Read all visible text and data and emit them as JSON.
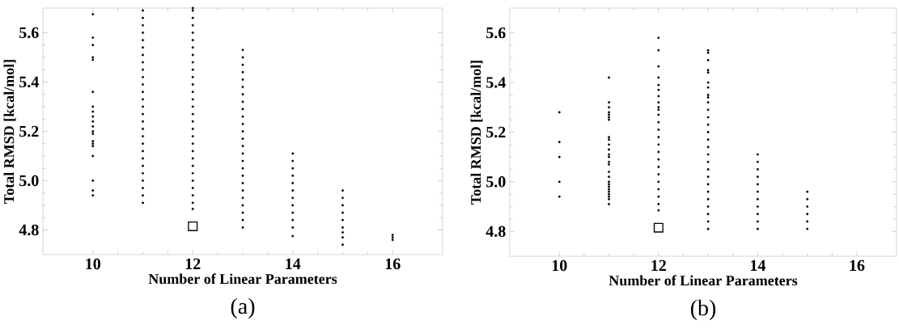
{
  "chart_data": [
    {
      "type": "scatter",
      "title": "(a)",
      "xlabel": "Number of Linear Parameters",
      "ylabel": "Total RMSD [kcal/mol]",
      "xlim": [
        9,
        17
      ],
      "ylim": [
        4.7,
        5.7
      ],
      "xticks": [
        10,
        12,
        14,
        16
      ],
      "yticks": [
        4.8,
        {
          "value": 5,
          "label": "5.0"
        },
        5.2,
        5.4,
        5.6
      ],
      "marker": "circle",
      "series": [
        {
          "color": "#000000",
          "x": [
            10,
            10,
            10,
            10,
            10,
            10,
            10,
            10,
            10,
            10,
            10,
            10,
            10,
            10,
            10,
            10,
            10,
            10,
            10,
            10
          ],
          "values": [
            5.675,
            5.58,
            5.55,
            5.5,
            5.49,
            5.36,
            5.3,
            5.28,
            5.26,
            5.24,
            5.22,
            5.2,
            5.19,
            5.16,
            5.15,
            5.14,
            5.1,
            5.0,
            4.96,
            4.94
          ]
        },
        {
          "color": "#000000",
          "x": [
            11,
            11,
            11,
            11,
            11,
            11,
            11,
            11,
            11,
            11,
            11,
            11,
            11,
            11,
            11,
            11,
            11,
            11,
            11,
            11,
            11,
            11,
            11,
            11,
            11,
            11,
            11
          ],
          "values": [
            4.91,
            4.94,
            4.97,
            5.0,
            5.03,
            5.06,
            5.09,
            5.12,
            5.15,
            5.18,
            5.21,
            5.24,
            5.27,
            5.3,
            5.33,
            5.36,
            5.39,
            5.42,
            5.45,
            5.48,
            5.51,
            5.54,
            5.57,
            5.6,
            5.63,
            5.66,
            5.69
          ]
        },
        {
          "color": "#000000",
          "x": [
            12,
            12,
            12,
            12,
            12,
            12,
            12,
            12,
            12,
            12,
            12,
            12,
            12,
            12,
            12,
            12,
            12,
            12,
            12,
            12,
            12,
            12,
            12,
            12,
            12,
            12,
            12,
            12,
            12
          ],
          "values": [
            4.885,
            4.91,
            4.94,
            4.97,
            5.0,
            5.03,
            5.06,
            5.09,
            5.12,
            5.15,
            5.18,
            5.21,
            5.24,
            5.27,
            5.3,
            5.33,
            5.36,
            5.39,
            5.42,
            5.45,
            5.48,
            5.51,
            5.54,
            5.57,
            5.6,
            5.63,
            5.66,
            5.69,
            5.7
          ]
        },
        {
          "color": "#000000",
          "x": [
            13,
            13,
            13,
            13,
            13,
            13,
            13,
            13,
            13,
            13,
            13,
            13,
            13,
            13,
            13,
            13,
            13,
            13,
            13,
            13,
            13,
            13,
            13,
            13,
            13
          ],
          "values": [
            4.81,
            4.84,
            4.87,
            4.9,
            4.93,
            4.96,
            4.99,
            5.02,
            5.05,
            5.08,
            5.11,
            5.14,
            5.17,
            5.2,
            5.23,
            5.26,
            5.29,
            5.32,
            5.35,
            5.38,
            5.41,
            5.44,
            5.47,
            5.5,
            5.53
          ]
        },
        {
          "color": "#000000",
          "x": [
            14,
            14,
            14,
            14,
            14,
            14,
            14,
            14,
            14,
            14,
            14,
            14
          ],
          "values": [
            4.775,
            4.81,
            4.84,
            4.87,
            4.9,
            4.93,
            4.96,
            4.99,
            5.02,
            5.05,
            5.08,
            5.11
          ]
        },
        {
          "color": "#000000",
          "x": [
            15,
            15,
            15,
            15,
            15,
            15,
            15,
            15,
            15
          ],
          "values": [
            4.74,
            4.77,
            4.79,
            4.81,
            4.84,
            4.87,
            4.9,
            4.93,
            4.96
          ]
        },
        {
          "color": "#000000",
          "x": [
            16,
            16,
            16
          ],
          "values": [
            4.76,
            4.77,
            4.78
          ]
        },
        {
          "color": "#000000",
          "marker": "square",
          "x": [
            12
          ],
          "values": [
            4.815
          ]
        }
      ]
    },
    {
      "type": "scatter",
      "title": "(b)",
      "xlabel": "Number of Linear Parameters",
      "ylabel": "Total RMSD [kcal/mol]",
      "xlim": [
        9,
        16.8
      ],
      "ylim": [
        4.7,
        5.7
      ],
      "xticks": [
        10,
        12,
        14,
        16
      ],
      "yticks": [
        4.8,
        {
          "value": 5,
          "label": "5.0"
        },
        5.2,
        5.4,
        5.6
      ],
      "marker": "circle",
      "series": [
        {
          "color": "#000000",
          "x": [
            10,
            10,
            10,
            10,
            10
          ],
          "values": [
            5.28,
            5.16,
            5.1,
            5.0,
            4.94
          ]
        },
        {
          "color": "#000000",
          "x": [
            11,
            11,
            11,
            11,
            11,
            11,
            11,
            11,
            11,
            11,
            11,
            11,
            11,
            11,
            11,
            11,
            11,
            11,
            11,
            11,
            11,
            11,
            11,
            11,
            11,
            11
          ],
          "values": [
            5.42,
            5.32,
            5.3,
            5.28,
            5.27,
            5.26,
            5.25,
            5.18,
            5.17,
            5.15,
            5.13,
            5.11,
            5.1,
            5.08,
            5.07,
            5.04,
            5.02,
            5.0,
            4.99,
            4.98,
            4.97,
            4.96,
            4.95,
            4.94,
            4.93,
            4.91
          ]
        },
        {
          "color": "#000000",
          "x": [
            12,
            12,
            12,
            12,
            12,
            12,
            12,
            12,
            12,
            12,
            12,
            12,
            12,
            12,
            12,
            12,
            12,
            12,
            12,
            12,
            12,
            12,
            12,
            12
          ],
          "values": [
            5.58,
            5.53,
            5.465,
            5.42,
            5.39,
            5.37,
            5.345,
            5.32,
            5.3,
            4.885,
            4.91,
            4.94,
            4.97,
            5.0,
            5.03,
            5.06,
            5.09,
            5.12,
            5.15,
            5.18,
            5.21,
            5.24,
            5.27,
            5.29
          ]
        },
        {
          "color": "#000000",
          "x": [
            13,
            13,
            13,
            13,
            13,
            13,
            13,
            13,
            13,
            13,
            13,
            13,
            13,
            13,
            13,
            13,
            13,
            13,
            13,
            13,
            13,
            13,
            13,
            13,
            13,
            13,
            13
          ],
          "values": [
            5.53,
            5.52,
            5.49,
            5.45,
            5.44,
            5.4,
            5.38,
            5.35,
            4.81,
            4.84,
            4.87,
            4.9,
            4.93,
            4.96,
            4.99,
            5.02,
            5.05,
            5.08,
            5.11,
            5.14,
            5.17,
            5.2,
            5.23,
            5.26,
            5.29,
            5.32,
            5.34
          ]
        },
        {
          "color": "#000000",
          "x": [
            14,
            14,
            14,
            14,
            14,
            14,
            14,
            14,
            14,
            14,
            14
          ],
          "values": [
            4.81,
            4.84,
            4.87,
            4.9,
            4.93,
            4.96,
            4.99,
            5.02,
            5.05,
            5.08,
            5.11
          ]
        },
        {
          "color": "#000000",
          "x": [
            15,
            15,
            15,
            15,
            15,
            15
          ],
          "values": [
            4.81,
            4.84,
            4.87,
            4.9,
            4.93,
            4.96
          ]
        },
        {
          "color": "#000000",
          "marker": "square",
          "x": [
            12
          ],
          "values": [
            4.815
          ]
        }
      ]
    }
  ]
}
